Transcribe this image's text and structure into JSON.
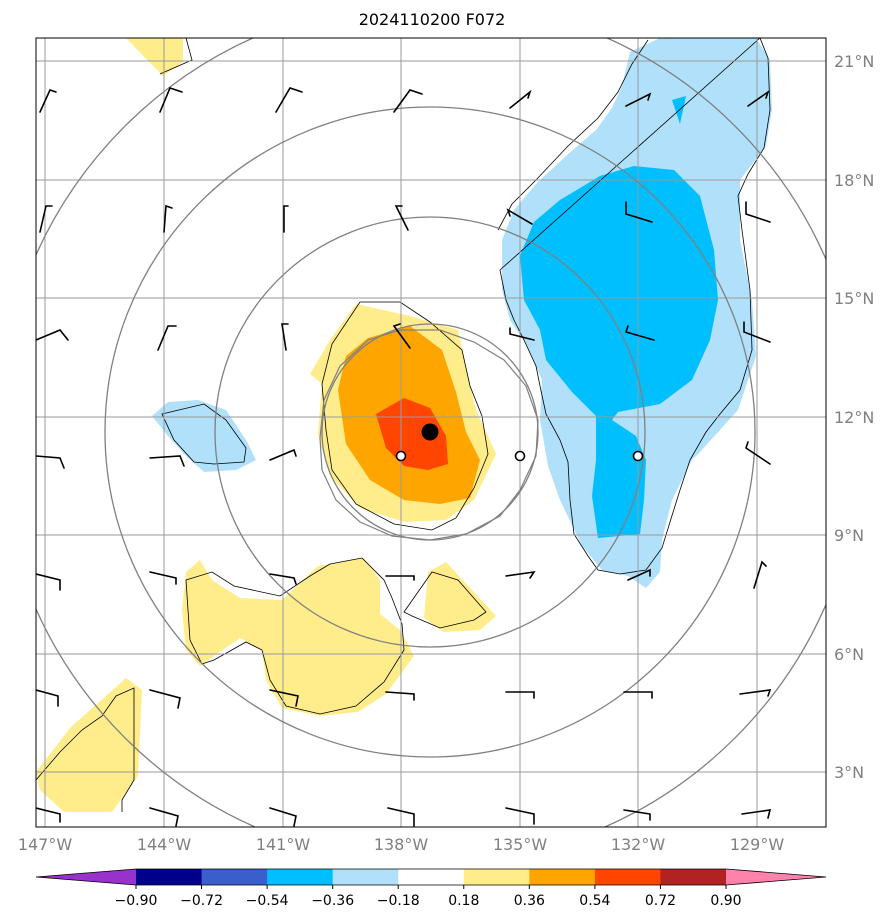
{
  "title": "2024110200 F072",
  "lat_labels": [
    "21°N",
    "18°N",
    "15°N",
    "12°N",
    "9°N",
    "6°N",
    "3°N"
  ],
  "lon_labels": [
    "147°W",
    "144°W",
    "141°W",
    "138°W",
    "135°W",
    "132°W",
    "129°W"
  ],
  "colorbar": {
    "labels": [
      "−0.90",
      "−0.72",
      "−0.54",
      "−0.36",
      "−0.18",
      "0.18",
      "0.36",
      "0.54",
      "0.72",
      "0.90"
    ],
    "colors": [
      "#9932cc",
      "#00008b",
      "#3a5fcd",
      "#00bfff",
      "#b0e0fa",
      "#ffffff",
      "#ffec8b",
      "#ffa500",
      "#ff4500",
      "#b22222",
      "#ff82ab"
    ]
  },
  "fill_colors": {
    "light_yellow": "#ffec8b",
    "orange": "#ffa500",
    "red_orange": "#ff4500",
    "light_blue": "#b0e0fa",
    "deep_sky_blue": "#00bfff"
  }
}
